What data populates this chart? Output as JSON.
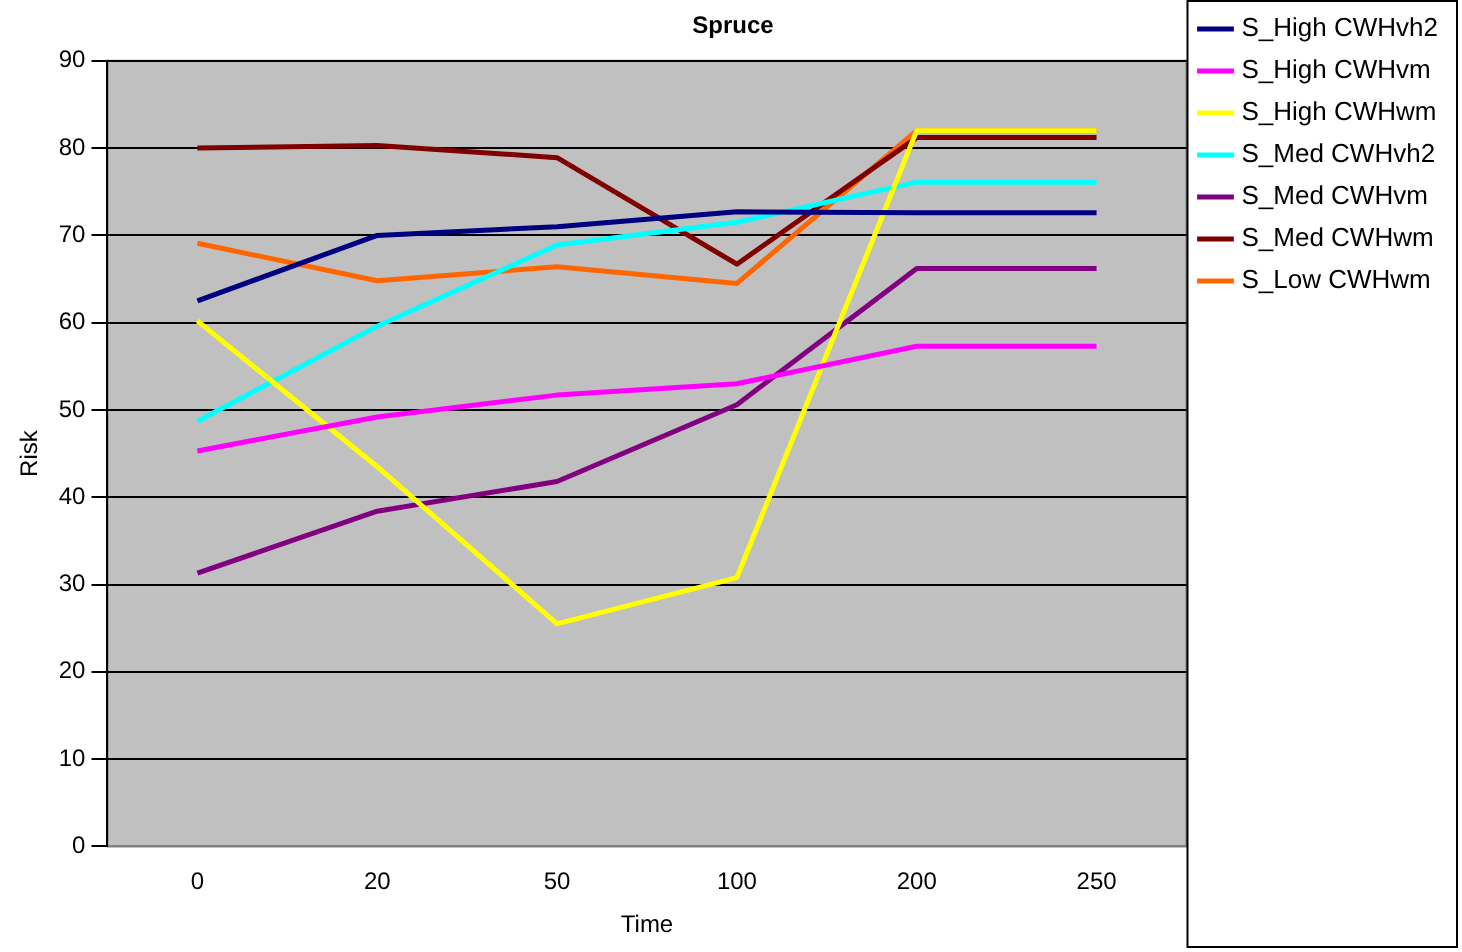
{
  "chart_data": {
    "type": "line",
    "title": "Spruce",
    "xlabel": "Time",
    "ylabel": "Risk",
    "categories": [
      "0",
      "20",
      "50",
      "100",
      "200",
      "250"
    ],
    "ylim": [
      0,
      90
    ],
    "yticks": [
      0,
      10,
      20,
      30,
      40,
      50,
      60,
      70,
      80,
      90
    ],
    "grid": "y",
    "legend": "top right",
    "marker": "none",
    "line_style": "solid",
    "series": [
      {
        "name": "S_High CWHvh2",
        "color": "#000080",
        "values": [
          62.5,
          70,
          71,
          72.7,
          72.6,
          72.6
        ]
      },
      {
        "name": "S_High CWHvm",
        "color": "#ff00ff",
        "values": [
          45.3,
          49.2,
          51.7,
          53,
          57.3,
          57.3
        ]
      },
      {
        "name": "S_High CWHwm",
        "color": "#ffff00",
        "values": [
          60.2,
          43.5,
          25.5,
          30.8,
          82,
          82
        ]
      },
      {
        "name": "S_Med CWHvh2",
        "color": "#00ffff",
        "values": [
          48.7,
          59.6,
          68.9,
          71.5,
          76.1,
          76.1
        ]
      },
      {
        "name": "S_Med CWHvm",
        "color": "#800080",
        "values": [
          31.3,
          38.4,
          41.8,
          50.6,
          66.2,
          66.2
        ]
      },
      {
        "name": "S_Med CWHwm",
        "color": "#800000",
        "values": [
          80,
          80.3,
          78.9,
          66.7,
          81.2,
          81.2
        ]
      },
      {
        "name": "S_Low CWHwm",
        "color": "#ff6600",
        "values": [
          69.1,
          64.8,
          66.4,
          64.5,
          82,
          82
        ]
      }
    ]
  }
}
